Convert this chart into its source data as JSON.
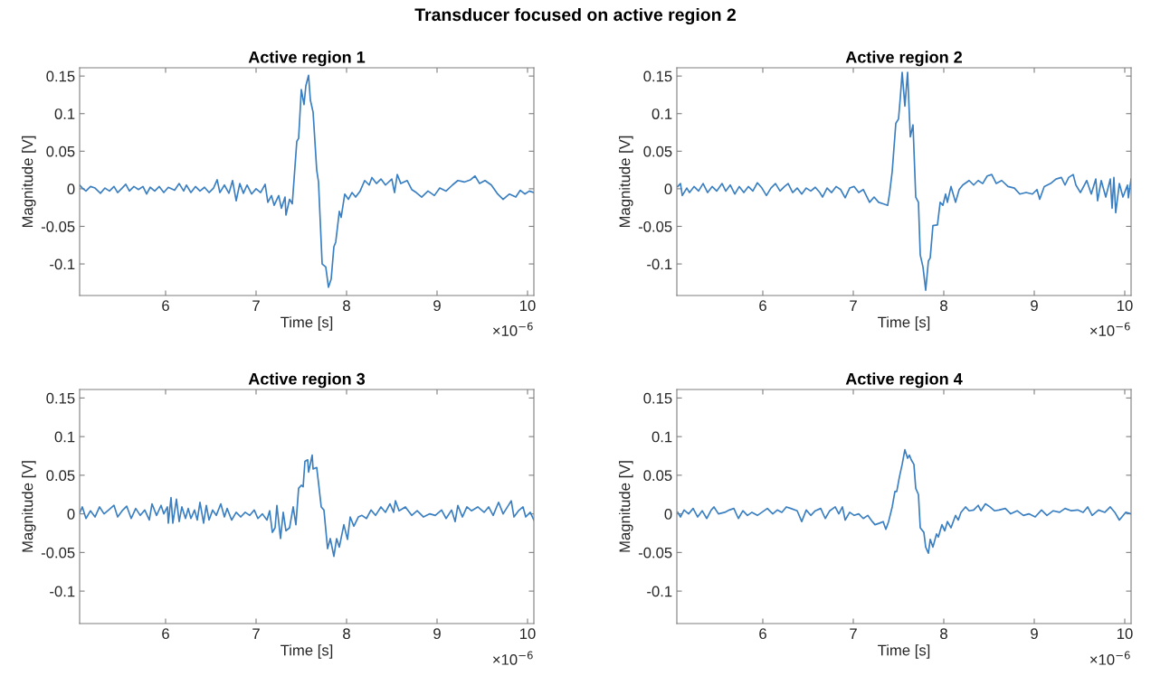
{
  "chart_data": [
    {
      "type": "other",
      "title": "Transducer focused on active region 2"
    },
    {
      "type": "line",
      "title": "Active region 1",
      "xlabel": "Time [s]",
      "ylabel": "Magnitude [V]",
      "annotations": [
        "×10$^{−6}$"
      ],
      "xlim": [
        5.05,
        10.07
      ],
      "ylim": [
        -0.142,
        0.161
      ],
      "xticks": [
        6,
        7,
        8,
        9,
        10
      ],
      "yticks": [
        -0.1,
        -0.05,
        0,
        0.05,
        0.1,
        0.15
      ],
      "marker": "none",
      "line_style": "solid",
      "x": [
        5.05,
        5.08,
        5.12,
        5.17,
        5.22,
        5.28,
        5.33,
        5.38,
        5.43,
        5.47,
        5.52,
        5.56,
        5.6,
        5.65,
        5.7,
        5.75,
        5.79,
        5.83,
        5.88,
        5.93,
        5.98,
        6.03,
        6.1,
        6.15,
        6.2,
        6.23,
        6.28,
        6.33,
        6.38,
        6.43,
        6.48,
        6.53,
        6.57,
        6.6,
        6.65,
        6.7,
        6.74,
        6.78,
        6.82,
        6.86,
        6.9,
        6.95,
        7.0,
        7.05,
        7.1,
        7.13,
        7.17,
        7.2,
        7.25,
        7.28,
        7.32,
        7.33,
        7.37,
        7.4,
        7.42,
        7.45,
        7.47,
        7.5,
        7.53,
        7.55,
        7.58,
        7.6,
        7.63,
        7.67,
        7.69,
        7.73,
        7.77,
        7.8,
        7.83,
        7.86,
        7.88,
        7.92,
        7.94,
        7.98,
        8.02,
        8.06,
        8.1,
        8.15,
        8.2,
        8.25,
        8.28,
        8.33,
        8.38,
        8.43,
        8.5,
        8.53,
        8.56,
        8.6,
        8.67,
        8.72,
        8.77,
        8.83,
        8.9,
        8.97,
        9.03,
        9.1,
        9.17,
        9.23,
        9.3,
        9.37,
        9.42,
        9.47,
        9.53,
        9.6,
        9.67,
        9.73,
        9.8,
        9.87,
        9.92,
        9.97,
        10.02,
        10.07
      ],
      "series": [
        {
          "color": "#3a7fc1",
          "values": [
            0.005,
            0.001,
            -0.003,
            0.003,
            0.001,
            -0.006,
            0.001,
            -0.003,
            0.003,
            -0.005,
            0.001,
            0.006,
            -0.003,
            0.003,
            -0.001,
            0.003,
            -0.007,
            0.002,
            -0.003,
            0.003,
            -0.005,
            0.002,
            -0.002,
            0.007,
            -0.003,
            0.005,
            -0.005,
            0.003,
            -0.003,
            0.002,
            -0.005,
            0.001,
            0.012,
            -0.005,
            0.005,
            -0.006,
            0.011,
            -0.016,
            0.007,
            -0.006,
            0.005,
            -0.007,
            0.0,
            -0.005,
            0.006,
            -0.018,
            -0.009,
            -0.022,
            -0.009,
            -0.026,
            -0.011,
            -0.035,
            -0.014,
            -0.02,
            0.013,
            0.063,
            0.067,
            0.132,
            0.112,
            0.137,
            0.151,
            0.118,
            0.102,
            0.025,
            0.009,
            -0.1,
            -0.104,
            -0.131,
            -0.12,
            -0.077,
            -0.071,
            -0.03,
            -0.038,
            -0.007,
            -0.014,
            -0.005,
            -0.011,
            -0.003,
            0.011,
            0.005,
            0.015,
            0.007,
            0.013,
            0.005,
            0.013,
            -0.005,
            0.019,
            0.007,
            0.011,
            -0.001,
            -0.005,
            -0.011,
            -0.003,
            -0.009,
            0.001,
            -0.003,
            0.005,
            0.011,
            0.009,
            0.012,
            0.017,
            0.007,
            0.011,
            0.005,
            -0.007,
            -0.014,
            -0.007,
            -0.011,
            -0.002,
            -0.007,
            -0.003,
            -0.005
          ]
        }
      ]
    },
    {
      "type": "line",
      "title": "Active region 2",
      "xlabel": "Time [s]",
      "ylabel": "Magnitude [V]",
      "annotations": [
        "×10$^{−6}$"
      ],
      "xlim": [
        5.05,
        10.07
      ],
      "ylim": [
        -0.142,
        0.161
      ],
      "xticks": [
        6,
        7,
        8,
        9,
        10
      ],
      "yticks": [
        -0.1,
        -0.05,
        0,
        0.05,
        0.1,
        0.15
      ],
      "marker": "none",
      "line_style": "solid",
      "x": [
        5.06,
        5.09,
        5.11,
        5.16,
        5.19,
        5.24,
        5.29,
        5.34,
        5.39,
        5.44,
        5.49,
        5.55,
        5.59,
        5.64,
        5.69,
        5.74,
        5.79,
        5.84,
        5.89,
        5.94,
        5.99,
        6.04,
        6.09,
        6.14,
        6.19,
        6.24,
        6.28,
        6.33,
        6.38,
        6.43,
        6.48,
        6.53,
        6.58,
        6.63,
        6.66,
        6.71,
        6.76,
        6.81,
        6.86,
        6.91,
        6.96,
        7.01,
        7.06,
        7.11,
        7.18,
        7.23,
        7.28,
        7.33,
        7.38,
        7.4,
        7.43,
        7.47,
        7.5,
        7.52,
        7.54,
        7.57,
        7.6,
        7.63,
        7.66,
        7.69,
        7.72,
        7.74,
        7.77,
        7.8,
        7.83,
        7.85,
        7.88,
        7.93,
        7.96,
        7.99,
        8.02,
        8.04,
        8.08,
        8.13,
        8.17,
        8.21,
        8.28,
        8.33,
        8.38,
        8.43,
        8.48,
        8.53,
        8.58,
        8.64,
        8.71,
        8.78,
        8.84,
        8.91,
        8.98,
        9.03,
        9.06,
        9.11,
        9.18,
        9.24,
        9.3,
        9.34,
        9.38,
        9.43,
        9.46,
        9.51,
        9.58,
        9.63,
        9.68,
        9.7,
        9.74,
        9.79,
        9.84,
        9.86,
        9.88,
        9.9,
        9.94,
        9.98,
        10.03,
        10.04,
        10.07
      ],
      "series": [
        {
          "color": "#3a7fc1",
          "values": [
            0.003,
            0.007,
            -0.009,
            0.001,
            -0.005,
            0.003,
            -0.003,
            0.007,
            -0.005,
            0.003,
            -0.003,
            0.007,
            -0.003,
            0.005,
            -0.007,
            0.003,
            -0.005,
            0.003,
            -0.003,
            0.008,
            0.001,
            -0.009,
            0.001,
            0.007,
            -0.003,
            0.003,
            0.007,
            -0.005,
            0.001,
            -0.007,
            0.001,
            -0.003,
            0.002,
            -0.005,
            -0.011,
            0.001,
            -0.005,
            0.003,
            -0.001,
            -0.012,
            0.001,
            0.003,
            -0.005,
            -0.001,
            -0.018,
            -0.011,
            -0.018,
            -0.02,
            -0.022,
            -0.007,
            0.023,
            0.087,
            0.093,
            0.122,
            0.155,
            0.11,
            0.155,
            0.069,
            0.085,
            -0.011,
            -0.018,
            -0.088,
            -0.104,
            -0.135,
            -0.096,
            -0.092,
            -0.049,
            -0.048,
            -0.018,
            -0.022,
            -0.007,
            -0.018,
            0.003,
            -0.018,
            -0.001,
            0.005,
            0.011,
            0.005,
            0.011,
            0.007,
            0.017,
            0.019,
            0.007,
            0.011,
            0.003,
            0.001,
            -0.007,
            -0.005,
            -0.007,
            -0.001,
            -0.014,
            0.003,
            0.007,
            0.013,
            0.015,
            0.005,
            0.015,
            0.019,
            0.005,
            -0.005,
            0.011,
            -0.007,
            0.013,
            -0.016,
            0.011,
            -0.011,
            0.013,
            -0.026,
            0.015,
            -0.032,
            0.007,
            -0.011,
            0.005,
            -0.012,
            0.013
          ]
        }
      ]
    },
    {
      "type": "line",
      "title": "Active region 3",
      "xlabel": "Time [s]",
      "ylabel": "Magnitude [V]",
      "annotations": [
        "×10$^{−6}$"
      ],
      "xlim": [
        5.05,
        10.07
      ],
      "ylim": [
        -0.142,
        0.161
      ],
      "xticks": [
        6,
        7,
        8,
        9,
        10
      ],
      "yticks": [
        -0.1,
        -0.05,
        0,
        0.05,
        0.1,
        0.15
      ],
      "marker": "none",
      "line_style": "solid",
      "x": [
        5.05,
        5.08,
        5.12,
        5.17,
        5.22,
        5.27,
        5.32,
        5.37,
        5.43,
        5.47,
        5.52,
        5.57,
        5.62,
        5.67,
        5.72,
        5.77,
        5.82,
        5.85,
        5.9,
        5.95,
        5.98,
        6.02,
        6.03,
        6.06,
        6.08,
        6.12,
        6.15,
        6.18,
        6.22,
        6.25,
        6.28,
        6.32,
        6.35,
        6.38,
        6.42,
        6.45,
        6.48,
        6.52,
        6.56,
        6.61,
        6.65,
        6.68,
        6.73,
        6.78,
        6.83,
        6.88,
        6.93,
        6.98,
        7.02,
        7.07,
        7.12,
        7.15,
        7.18,
        7.21,
        7.23,
        7.27,
        7.3,
        7.33,
        7.37,
        7.41,
        7.44,
        7.47,
        7.5,
        7.52,
        7.54,
        7.57,
        7.58,
        7.62,
        7.63,
        7.67,
        7.69,
        7.72,
        7.75,
        7.79,
        7.82,
        7.86,
        7.89,
        7.92,
        7.97,
        8.01,
        8.04,
        8.08,
        8.13,
        8.17,
        8.22,
        8.27,
        8.32,
        8.38,
        8.43,
        8.48,
        8.52,
        8.54,
        8.58,
        8.65,
        8.72,
        8.78,
        8.85,
        8.92,
        8.98,
        9.05,
        9.1,
        9.16,
        9.2,
        9.23,
        9.28,
        9.33,
        9.38,
        9.45,
        9.52,
        9.57,
        9.62,
        9.68,
        9.73,
        9.82,
        9.85,
        9.9,
        9.95,
        9.98,
        10.03,
        10.07
      ],
      "series": [
        {
          "color": "#3a7fc1",
          "values": [
            0.001,
            0.009,
            -0.006,
            0.004,
            -0.004,
            0.009,
            0.0,
            0.005,
            0.011,
            -0.004,
            0.004,
            0.01,
            -0.006,
            0.007,
            -0.002,
            0.005,
            -0.008,
            0.013,
            -0.002,
            0.011,
            0.0,
            0.009,
            -0.012,
            0.021,
            -0.012,
            0.019,
            -0.01,
            0.009,
            -0.006,
            0.007,
            -0.006,
            0.005,
            -0.008,
            0.015,
            -0.012,
            0.011,
            -0.008,
            0.005,
            -0.002,
            0.013,
            -0.004,
            0.007,
            -0.008,
            0.002,
            -0.004,
            0.002,
            -0.002,
            0.005,
            -0.006,
            0.0,
            -0.008,
            0.004,
            -0.024,
            -0.018,
            0.011,
            -0.032,
            0.002,
            -0.022,
            -0.018,
            0.009,
            -0.014,
            0.033,
            0.037,
            0.035,
            0.068,
            0.07,
            0.054,
            0.076,
            0.058,
            0.06,
            0.04,
            0.009,
            0.005,
            -0.045,
            -0.032,
            -0.055,
            -0.032,
            -0.043,
            -0.014,
            -0.033,
            -0.004,
            -0.016,
            -0.004,
            -0.002,
            -0.006,
            0.005,
            -0.002,
            0.009,
            0.002,
            0.013,
            0.002,
            0.017,
            0.004,
            0.009,
            -0.002,
            0.004,
            -0.004,
            0.0,
            -0.002,
            0.005,
            -0.006,
            0.005,
            -0.01,
            0.011,
            -0.004,
            0.009,
            0.004,
            0.009,
            0.002,
            0.009,
            -0.002,
            0.015,
            0.0,
            0.017,
            -0.004,
            0.004,
            0.009,
            -0.004,
            0.002,
            -0.008
          ]
        }
      ]
    },
    {
      "type": "line",
      "title": "Active region 4",
      "xlabel": "Time [s]",
      "ylabel": "Magnitude [V]",
      "annotations": [
        "×10$^{−6}$"
      ],
      "xlim": [
        5.05,
        10.07
      ],
      "ylim": [
        -0.142,
        0.161
      ],
      "xticks": [
        6,
        7,
        8,
        9,
        10
      ],
      "yticks": [
        -0.1,
        -0.05,
        0,
        0.05,
        0.1,
        0.15
      ],
      "marker": "none",
      "line_style": "solid",
      "x": [
        5.06,
        5.09,
        5.13,
        5.18,
        5.23,
        5.28,
        5.33,
        5.38,
        5.43,
        5.46,
        5.51,
        5.58,
        5.63,
        5.68,
        5.73,
        5.78,
        5.83,
        5.88,
        5.94,
        5.99,
        6.05,
        6.11,
        6.16,
        6.21,
        6.26,
        6.31,
        6.38,
        6.43,
        6.48,
        6.53,
        6.58,
        6.64,
        6.69,
        6.74,
        6.8,
        6.84,
        6.88,
        6.91,
        6.96,
        7.01,
        7.06,
        7.11,
        7.16,
        7.21,
        7.24,
        7.29,
        7.33,
        7.36,
        7.39,
        7.43,
        7.46,
        7.48,
        7.51,
        7.54,
        7.57,
        7.6,
        7.62,
        7.64,
        7.67,
        7.69,
        7.72,
        7.74,
        7.78,
        7.8,
        7.83,
        7.85,
        7.88,
        7.92,
        7.94,
        7.98,
        8.01,
        8.04,
        8.08,
        8.13,
        8.16,
        8.19,
        8.24,
        8.28,
        8.33,
        8.38,
        8.41,
        8.46,
        8.51,
        8.56,
        8.61,
        8.68,
        8.74,
        8.81,
        8.88,
        8.94,
        9.01,
        9.08,
        9.14,
        9.21,
        9.28,
        9.34,
        9.41,
        9.48,
        9.54,
        9.59,
        9.64,
        9.71,
        9.78,
        9.84,
        9.89,
        9.94,
        10.01,
        10.07
      ],
      "series": [
        {
          "color": "#3a7fc1",
          "values": [
            0.002,
            -0.004,
            0.005,
            0.0,
            0.007,
            -0.004,
            0.004,
            -0.006,
            0.005,
            0.009,
            0.0,
            0.002,
            0.005,
            0.007,
            -0.006,
            0.004,
            -0.002,
            0.002,
            -0.002,
            0.002,
            0.007,
            0.0,
            0.005,
            0.002,
            0.009,
            0.007,
            0.004,
            -0.01,
            0.005,
            -0.002,
            0.004,
            0.007,
            -0.006,
            0.004,
            0.009,
            0.0,
            0.009,
            -0.008,
            0.002,
            -0.002,
            0.0,
            -0.006,
            -0.002,
            -0.01,
            -0.014,
            -0.012,
            -0.01,
            -0.02,
            -0.01,
            0.009,
            0.029,
            0.029,
            0.048,
            0.064,
            0.083,
            0.072,
            0.076,
            0.07,
            0.064,
            0.033,
            0.025,
            -0.018,
            -0.024,
            -0.043,
            -0.051,
            -0.033,
            -0.043,
            -0.026,
            -0.03,
            -0.014,
            -0.022,
            -0.01,
            -0.018,
            -0.002,
            -0.008,
            0.002,
            0.009,
            0.004,
            0.005,
            0.011,
            0.004,
            0.013,
            0.009,
            0.004,
            0.005,
            0.007,
            0.0,
            0.004,
            -0.002,
            0.0,
            -0.004,
            0.005,
            -0.002,
            0.004,
            0.002,
            0.007,
            0.004,
            0.005,
            0.002,
            0.009,
            -0.002,
            0.005,
            0.002,
            0.009,
            0.002,
            -0.008,
            0.002,
            0.0
          ]
        }
      ]
    }
  ]
}
